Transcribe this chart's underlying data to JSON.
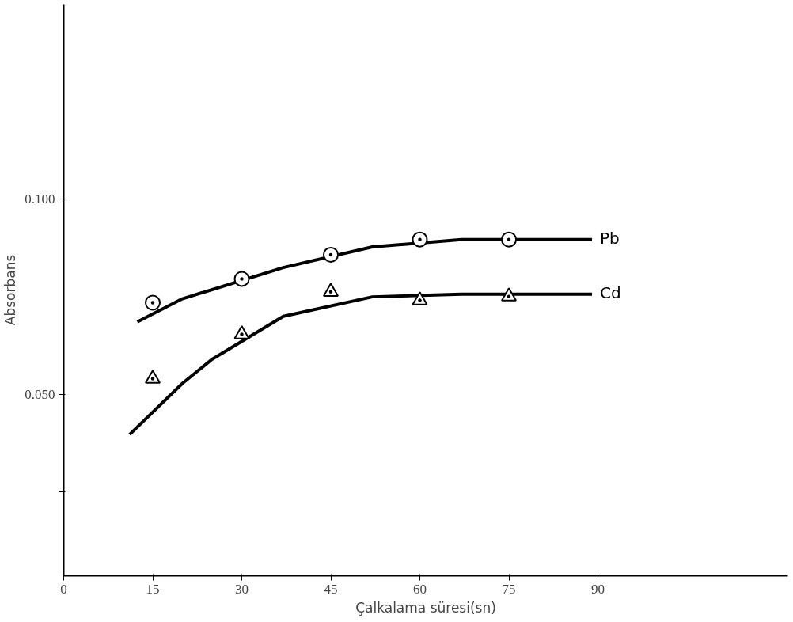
{
  "chart_data": {
    "type": "line",
    "xlabel": "Çalkalama süresi(sn)",
    "ylabel": "Absorbans",
    "xlim": [
      0,
      122
    ],
    "ylim": [
      0.0035,
      0.15
    ],
    "xticks": [
      0,
      15,
      30,
      45,
      60,
      75,
      90
    ],
    "yticks": [
      {
        "value": 0.025,
        "label": null
      },
      {
        "value": 0.05,
        "label": "0.050"
      },
      {
        "value": 0.1,
        "label": "0.100"
      }
    ],
    "grid": false,
    "legend": false,
    "line_style": "solid",
    "series": [
      {
        "name": "Pb",
        "color": "#000000",
        "x": [
          12.4,
          20,
          37,
          52,
          67,
          82,
          89
        ],
        "values": [
          0.0686,
          0.0745,
          0.0825,
          0.0878,
          0.0897,
          0.0897,
          0.0897
        ]
      },
      {
        "name": "Cd",
        "color": "#000000",
        "x": [
          11.1,
          20,
          25,
          37,
          52,
          67,
          89
        ],
        "values": [
          0.0397,
          0.0528,
          0.059,
          0.07,
          0.075,
          0.0757,
          0.0757
        ]
      },
      {
        "type": "scatter",
        "marker": "circle",
        "color": "#000000",
        "x": [
          15,
          30,
          45,
          60,
          75
        ],
        "values": [
          0.0735,
          0.0796,
          0.0858,
          0.0897,
          0.0897
        ]
      },
      {
        "type": "scatter",
        "marker": "triangle",
        "color": "#000000",
        "x": [
          15,
          30,
          45,
          60,
          75
        ],
        "values": [
          0.054,
          0.0654,
          0.0763,
          0.0741,
          0.0751
        ]
      }
    ]
  }
}
